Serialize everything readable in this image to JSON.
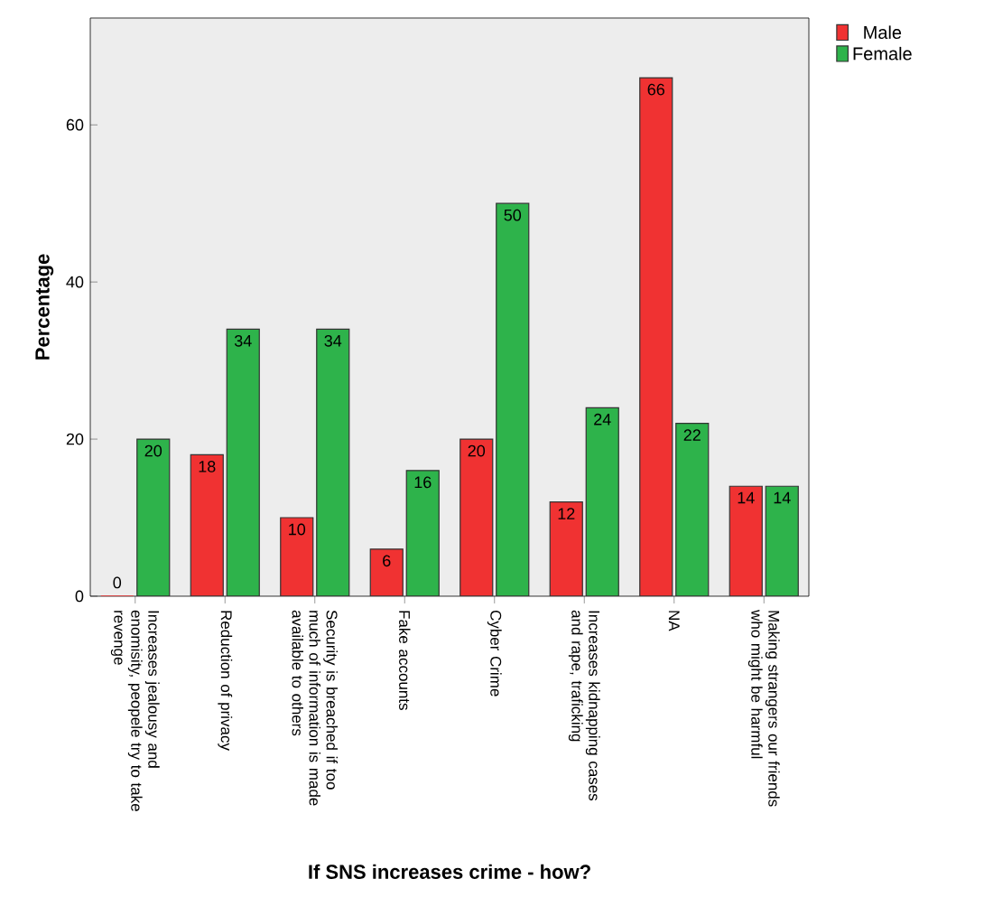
{
  "chart_data": {
    "type": "bar",
    "xlabel": "If SNS increases crime - how?",
    "ylabel": "Percentage",
    "categories": [
      "Increases jealousy and enomisity, peopele try to take revenge",
      "Reduction of privacy",
      "Security is breached if too much of information is made available to others",
      "Fake accounts",
      "Cyber Crime",
      "Increases kidnapping cases and rape, traficking",
      "NA",
      "Making strangers our friends who might be harmful"
    ],
    "series": [
      {
        "name": "Male",
        "color": "#f03232",
        "values": [
          0,
          18,
          10,
          6,
          20,
          12,
          66,
          14
        ]
      },
      {
        "name": "Female",
        "color": "#2eb34b",
        "values": [
          20,
          34,
          34,
          16,
          50,
          24,
          22,
          14
        ]
      }
    ],
    "ylim": [
      0,
      73.6
    ],
    "yticks": [
      0,
      20,
      40,
      60
    ],
    "data_labels": true,
    "legend": "top right",
    "grid": false
  }
}
